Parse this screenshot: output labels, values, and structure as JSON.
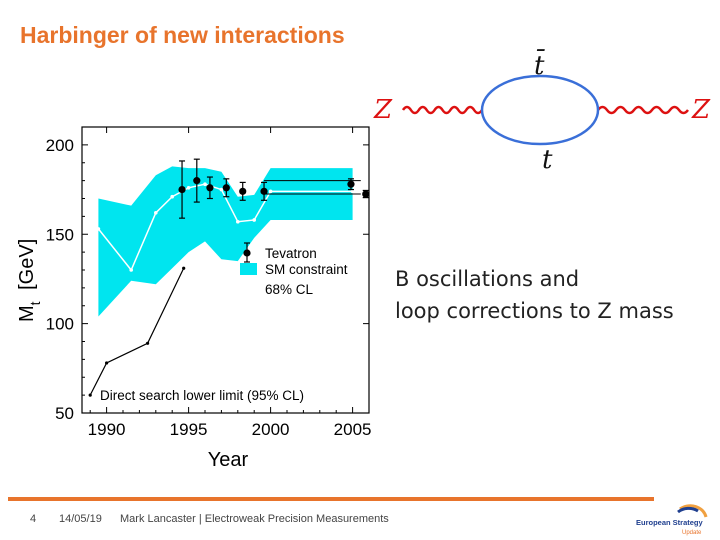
{
  "slide": {
    "title": "Harbinger of new interactions",
    "side_text_line1": "B oscillations and",
    "side_text_line2": "loop corrections to Z mass"
  },
  "feynman": {
    "top_label": "t̄",
    "bottom_label": "t",
    "left_label": "Z",
    "right_label": "Z",
    "boson_color": "#dd1111",
    "loop_color": "#3a6fd8"
  },
  "footer": {
    "page_number": "4",
    "date": "14/05/19",
    "author_line": "Mark Lancaster | Electroweak Precision Measurements",
    "accent_color": "#e8742c"
  },
  "logo": {
    "line1": "European Strategy",
    "line2": "Update"
  },
  "chart_data": {
    "type": "scatter",
    "xlabel": "Year",
    "ylabel": "M",
    "ylabel_sub": "t",
    "ylabel_unit": "[GeV]",
    "xlim": [
      1988.5,
      2006
    ],
    "ylim": [
      50,
      210
    ],
    "xticks": [
      1990,
      1995,
      2000,
      2005
    ],
    "yticks": [
      50,
      100,
      150,
      200
    ],
    "legend": {
      "position": "center-right",
      "tevatron_label": "Tevatron",
      "sm_label": "SM constraint",
      "cl_label": "68% CL"
    },
    "annotation": "Direct search lower limit (95% CL)",
    "sm_band": {
      "color": "#00e5ef",
      "x": [
        1989.5,
        1991.5,
        1993.0,
        1994.0,
        1995.0,
        1996.0,
        1997.0,
        1998.0,
        1999.0,
        2000.0,
        2005.0
      ],
      "upper": [
        170,
        166,
        183,
        188,
        187,
        187,
        185,
        171,
        172,
        187,
        187
      ],
      "lower": [
        104,
        124,
        122,
        131,
        140,
        146,
        136,
        135,
        148,
        158,
        158
      ],
      "central": [
        153,
        130,
        162,
        171,
        176,
        178,
        175,
        157,
        158,
        174,
        174
      ]
    },
    "tevatron_points": {
      "x": [
        1994.6,
        1995.5,
        1996.3,
        1997.3,
        1998.3,
        1999.6,
        2004.9,
        2005.8
      ],
      "y": [
        175,
        180,
        176,
        176,
        174,
        174,
        178,
        172.5
      ],
      "err": [
        16,
        12,
        6,
        5,
        5,
        5,
        3,
        2
      ]
    },
    "tevatron_hlines": {
      "y": [
        180,
        172.5
      ],
      "x_start": [
        1999.6,
        1999.6
      ],
      "x_end": [
        2005.5,
        2005.5
      ]
    },
    "direct_limit": {
      "x": [
        1989.0,
        1990.0,
        1992.5,
        1994.7
      ],
      "y": [
        60,
        78,
        89,
        131
      ]
    }
  }
}
